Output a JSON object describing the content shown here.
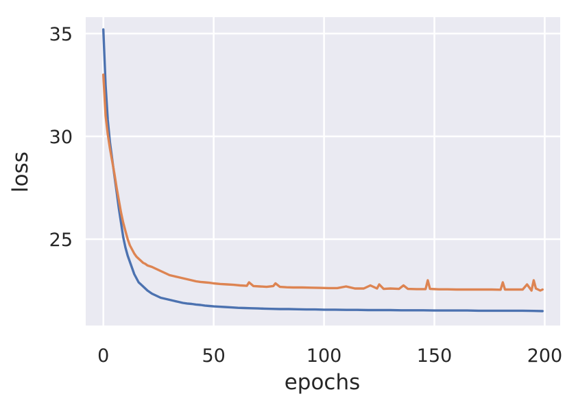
{
  "chart_data": {
    "type": "line",
    "xlabel": "epochs",
    "ylabel": "loss",
    "xlim": [
      -8,
      207
    ],
    "ylim": [
      20.8,
      35.8
    ],
    "xticks": [
      0,
      50,
      100,
      150,
      200
    ],
    "yticks": [
      25,
      30,
      35
    ],
    "grid": true,
    "background": "#eaeaf2",
    "series": [
      {
        "color": "#4c72b0",
        "x": [
          0,
          1,
          2,
          3,
          4,
          5,
          6,
          7,
          8,
          9,
          10,
          11,
          12,
          13,
          14,
          15,
          16,
          17,
          18,
          19,
          20,
          22,
          24,
          26,
          28,
          30,
          32,
          34,
          36,
          38,
          40,
          42,
          44,
          46,
          48,
          50,
          52,
          55,
          58,
          61,
          64,
          67,
          70,
          73,
          76,
          80,
          84,
          88,
          92,
          96,
          100,
          105,
          110,
          115,
          120,
          125,
          130,
          135,
          140,
          145,
          150,
          155,
          160,
          165,
          170,
          175,
          180,
          185,
          190,
          195,
          199
        ],
        "values": [
          35.2,
          32.5,
          30.8,
          29.7,
          28.9,
          28.1,
          27.3,
          26.5,
          25.8,
          25.1,
          24.6,
          24.2,
          23.9,
          23.6,
          23.3,
          23.1,
          22.9,
          22.8,
          22.7,
          22.6,
          22.5,
          22.35,
          22.25,
          22.15,
          22.1,
          22.05,
          22.0,
          21.95,
          21.9,
          21.87,
          21.85,
          21.82,
          21.8,
          21.77,
          21.75,
          21.73,
          21.72,
          21.7,
          21.68,
          21.66,
          21.65,
          21.64,
          21.63,
          21.62,
          21.61,
          21.6,
          21.6,
          21.59,
          21.58,
          21.58,
          21.57,
          21.57,
          21.56,
          21.56,
          21.55,
          21.55,
          21.55,
          21.54,
          21.54,
          21.54,
          21.53,
          21.53,
          21.53,
          21.53,
          21.52,
          21.52,
          21.52,
          21.52,
          21.52,
          21.51,
          21.5
        ]
      },
      {
        "color": "#dd8452",
        "x": [
          0,
          1,
          2,
          3,
          4,
          5,
          6,
          7,
          8,
          9,
          10,
          11,
          12,
          13,
          14,
          15,
          16,
          17,
          18,
          19,
          20,
          22,
          24,
          26,
          28,
          30,
          32,
          34,
          36,
          38,
          40,
          42,
          44,
          46,
          48,
          50,
          53,
          56,
          59,
          62,
          65,
          66,
          68,
          71,
          74,
          77,
          78,
          80,
          83,
          86,
          90,
          94,
          98,
          102,
          106,
          110,
          114,
          118,
          121,
          124,
          125,
          127,
          130,
          134,
          136,
          138,
          142,
          146,
          147,
          148,
          152,
          156,
          160,
          164,
          168,
          172,
          176,
          180,
          181,
          182,
          186,
          190,
          192,
          194,
          195,
          196,
          198,
          199
        ],
        "values": [
          33.0,
          31.0,
          30.1,
          29.4,
          28.8,
          28.2,
          27.5,
          26.9,
          26.3,
          25.8,
          25.4,
          25.0,
          24.7,
          24.5,
          24.3,
          24.15,
          24.05,
          23.95,
          23.85,
          23.8,
          23.72,
          23.65,
          23.55,
          23.45,
          23.35,
          23.25,
          23.2,
          23.15,
          23.1,
          23.05,
          23.0,
          22.95,
          22.92,
          22.9,
          22.88,
          22.85,
          22.82,
          22.8,
          22.78,
          22.75,
          22.73,
          22.9,
          22.72,
          22.7,
          22.68,
          22.72,
          22.85,
          22.68,
          22.66,
          22.65,
          22.65,
          22.64,
          22.63,
          22.62,
          22.62,
          22.7,
          22.6,
          22.6,
          22.75,
          22.6,
          22.8,
          22.58,
          22.6,
          22.58,
          22.75,
          22.58,
          22.57,
          22.57,
          23.0,
          22.58,
          22.56,
          22.56,
          22.55,
          22.55,
          22.55,
          22.55,
          22.55,
          22.54,
          22.9,
          22.55,
          22.55,
          22.55,
          22.8,
          22.5,
          23.0,
          22.6,
          22.5,
          22.55
        ]
      }
    ]
  }
}
